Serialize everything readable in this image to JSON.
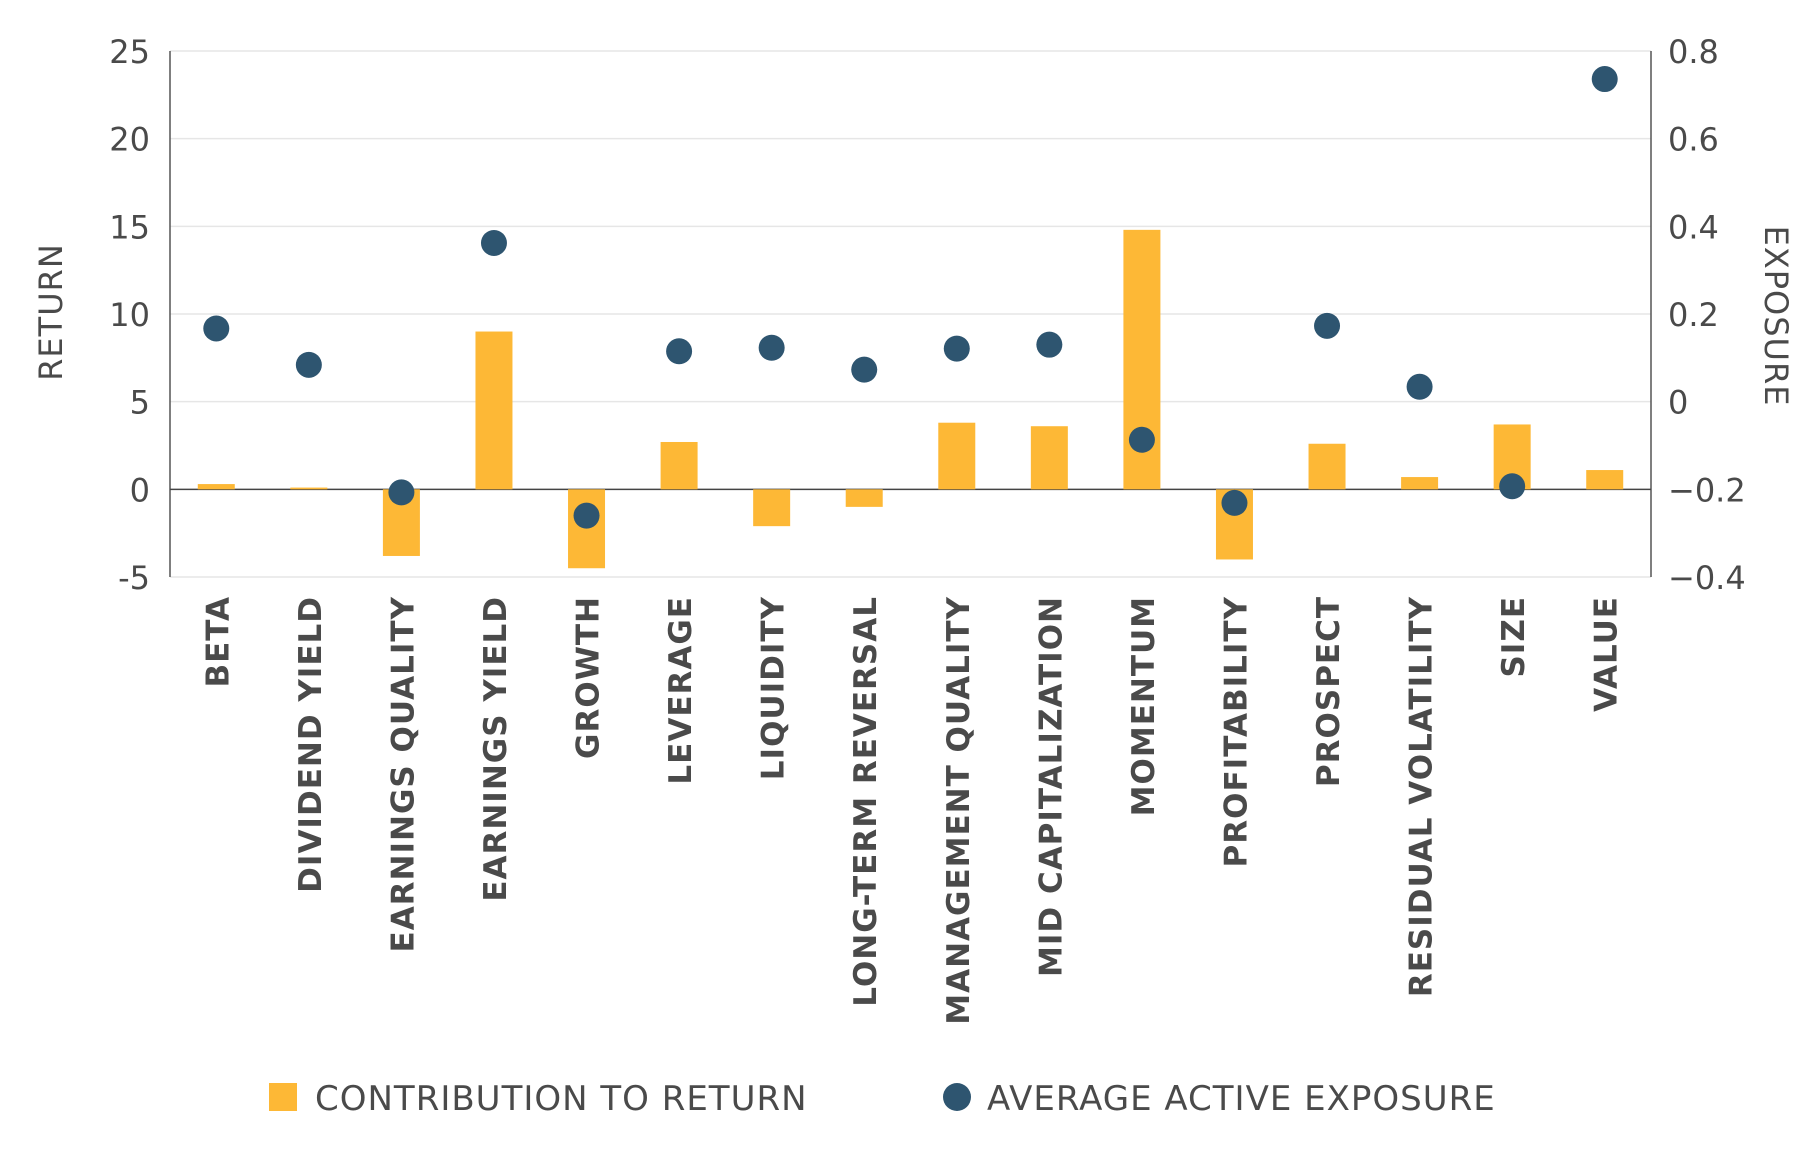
{
  "chart_data": {
    "type": "bar",
    "categories": [
      "BETA",
      "DIVIDEND YIELD",
      "EARNINGS QUALITY",
      "EARNINGS YIELD",
      "GROWTH",
      "LEVERAGE",
      "LIQUIDITY",
      "LONG-TERM REVERSAL",
      "MANAGEMENT QUALITY",
      "MID CAPITALIZATION",
      "MOMENTUM",
      "PROFITABILITY",
      "PROSPECT",
      "RESIDUAL VOLATILITY",
      "SIZE",
      "VALUE"
    ],
    "series": [
      {
        "name": "CONTRIBUTION TO RETURN",
        "type": "bar",
        "axis": "left",
        "color": "#FDB836",
        "values": [
          0.3,
          0.1,
          -3.8,
          9.0,
          -4.5,
          2.7,
          -2.1,
          -1.0,
          3.8,
          3.6,
          14.8,
          -4.0,
          2.6,
          0.7,
          3.7,
          1.1
        ]
      },
      {
        "name": "AVERAGE ACTIVE EXPOSURE",
        "type": "scatter",
        "axis": "right",
        "color": "#2E5570",
        "values": [
          0.167,
          0.084,
          -0.207,
          0.362,
          -0.26,
          0.115,
          0.123,
          0.073,
          0.121,
          0.13,
          -0.087,
          -0.231,
          0.173,
          0.034,
          -0.193,
          0.736
        ]
      }
    ],
    "left_axis": {
      "label": "RETURN",
      "ylim": [
        -5,
        25
      ],
      "ticks": [
        "-5",
        "0",
        "5",
        "10",
        "15",
        "20",
        "25"
      ]
    },
    "right_axis": {
      "label": "EXPOSURE",
      "ylim": [
        -0.4,
        0.8
      ],
      "ticks": [
        "-0.4",
        "-0.2",
        "0",
        "0.2",
        "0.4",
        "0.6",
        "0.8"
      ]
    },
    "grid": true,
    "legend": "bottom"
  }
}
